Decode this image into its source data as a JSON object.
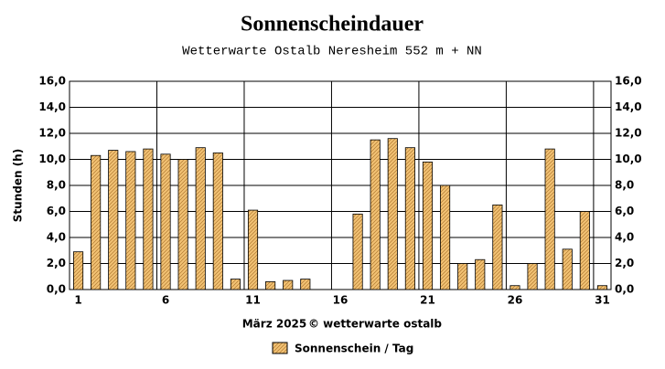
{
  "chart_data": {
    "type": "bar",
    "title": "Sonnenscheindauer",
    "subtitle": "Wetterwarte Ostalb Neresheim 552 m + NN",
    "ylabel": "Stunden  (h)",
    "xlabel": "März 2025",
    "annotation": "© wetterwarte ostalb",
    "categories": [
      "1",
      null,
      null,
      null,
      null,
      "6",
      null,
      null,
      null,
      null,
      "11",
      null,
      null,
      null,
      null,
      "16",
      null,
      null,
      null,
      null,
      "21",
      null,
      null,
      null,
      null,
      "26",
      null,
      null,
      null,
      null,
      "31"
    ],
    "series": [
      {
        "name": "Sonnenschein / Tag",
        "color": "#f2c274",
        "values": [
          2.9,
          10.3,
          10.7,
          10.6,
          10.8,
          10.4,
          10.0,
          10.9,
          10.5,
          0.8,
          6.1,
          0.6,
          0.7,
          0.8,
          0,
          0,
          5.8,
          11.5,
          11.6,
          10.9,
          9.8,
          8.0,
          2.0,
          2.3,
          6.5,
          0.3,
          2.0,
          10.8,
          3.1,
          6.0,
          0.3
        ]
      }
    ],
    "ylim": [
      0,
      16
    ],
    "yticks": [
      {
        "value": 0,
        "label": "0,0"
      },
      {
        "value": 2,
        "label": "2,0"
      },
      {
        "value": 4,
        "label": "4,0"
      },
      {
        "value": 6,
        "label": "6,0"
      },
      {
        "value": 8,
        "label": "8,0"
      },
      {
        "value": 10,
        "label": "10,0"
      },
      {
        "value": 12,
        "label": "12,0"
      },
      {
        "value": 14,
        "label": "14,0"
      },
      {
        "value": 16,
        "label": "16,0"
      }
    ],
    "grid": true,
    "legend": "bottom"
  }
}
